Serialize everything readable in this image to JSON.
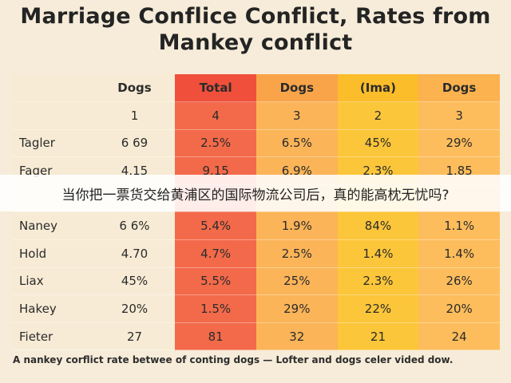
{
  "title": "Marriage Conflice Conflict, Rates from Mankey conflict",
  "table": {
    "header": [
      "",
      "Dogs",
      "Total",
      "Dogs",
      "(Ima)",
      "Dogs"
    ],
    "rows": [
      [
        "",
        "1",
        "4",
        "3",
        "2",
        "3"
      ],
      [
        "Tagler",
        "6 69",
        "2.5%",
        "6.5%",
        "45%",
        "29%"
      ],
      [
        "Fager",
        "4.15",
        "9.15",
        "6.9%",
        "2.3%",
        "1.85"
      ],
      [
        "",
        "",
        "",
        "",
        "",
        ""
      ],
      [
        "Naney",
        "6 6%",
        "5.4%",
        "1.9%",
        "84%",
        "1.1%"
      ],
      [
        "Hold",
        "4.70",
        "4.7%",
        "2.5%",
        "1.4%",
        "1.4%"
      ],
      [
        "Liax",
        "45%",
        "5.5%",
        "25%",
        "2.3%",
        "26%"
      ],
      [
        "Hakey",
        "20%",
        "1.5%",
        "29%",
        "22%",
        "20%"
      ],
      [
        "Fieter",
        "27",
        "81",
        "32",
        "21",
        "24"
      ]
    ]
  },
  "banner": "当你把一票货交给黄浦区的国际物流公司后，真的能高枕无忧吗?",
  "caption": "A nankey corflict rate betwee of conting dogs — Lofter and dogs celer vided dow."
}
